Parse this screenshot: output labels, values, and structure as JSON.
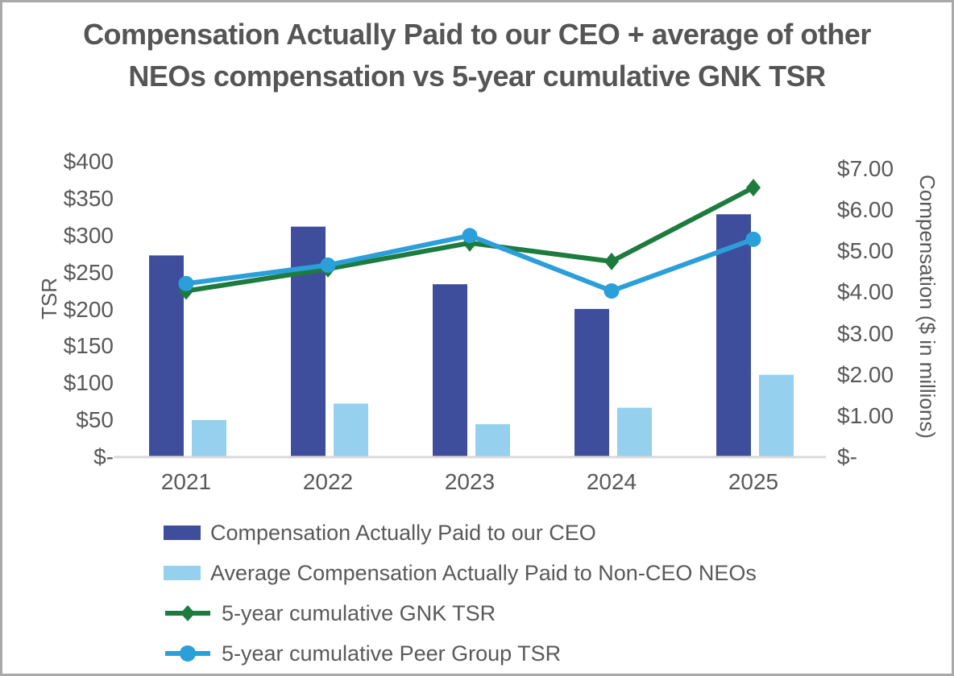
{
  "window": {
    "background": "#ffffff",
    "border_color": "#a9a9a9",
    "text_color": "#595959"
  },
  "title": {
    "line1": "Compensation Actually Paid to our CEO + average of other",
    "line2": "NEOs compensation vs 5-year cumulative GNK TSR"
  },
  "chart_data": {
    "type": "bar",
    "subtype": "combo-bar-line-dual-axis",
    "categories": [
      "2021",
      "2022",
      "2023",
      "2024",
      "2025"
    ],
    "series": [
      {
        "name": "Compensation Actually Paid to our CEO",
        "type": "bar",
        "axis": "right",
        "color": "#3F4E9C",
        "marker": "rect",
        "values": [
          4.9,
          5.6,
          4.2,
          3.6,
          5.9
        ]
      },
      {
        "name": "Average Compensation Actually Paid to Non-CEO NEOs",
        "type": "bar",
        "axis": "right",
        "color": "#95D0EE",
        "marker": "rect",
        "values": [
          0.9,
          1.3,
          0.8,
          1.2,
          2.0
        ]
      },
      {
        "name": "5-year cumulative GNK TSR",
        "type": "line",
        "axis": "left",
        "color": "#1E7B3E",
        "marker": "diamond",
        "values": [
          225,
          255,
          290,
          265,
          365
        ]
      },
      {
        "name": "5-year cumulative Peer Group TSR",
        "type": "line",
        "axis": "left",
        "color": "#2B9FD9",
        "marker": "circle",
        "values": [
          235,
          260,
          300,
          225,
          295
        ]
      }
    ],
    "left_axis": {
      "label": "TSR",
      "min": 0,
      "max": 400,
      "tick_step": 50,
      "tick_labels": [
        "$-",
        "$50",
        "$100",
        "$150",
        "$200",
        "$250",
        "$300",
        "$350",
        "$400"
      ]
    },
    "right_axis": {
      "label": "Compensation ($ in millions)",
      "min": 0,
      "max": 7,
      "tick_step": 1,
      "tick_labels": [
        "$-",
        "$1.00",
        "$2.00",
        "$3.00",
        "$4.00",
        "$5.00",
        "$6.00",
        "$7.00"
      ]
    },
    "grid": "off",
    "legend_position": "bottom-left",
    "axis_line_color": "#D9D9D9"
  }
}
